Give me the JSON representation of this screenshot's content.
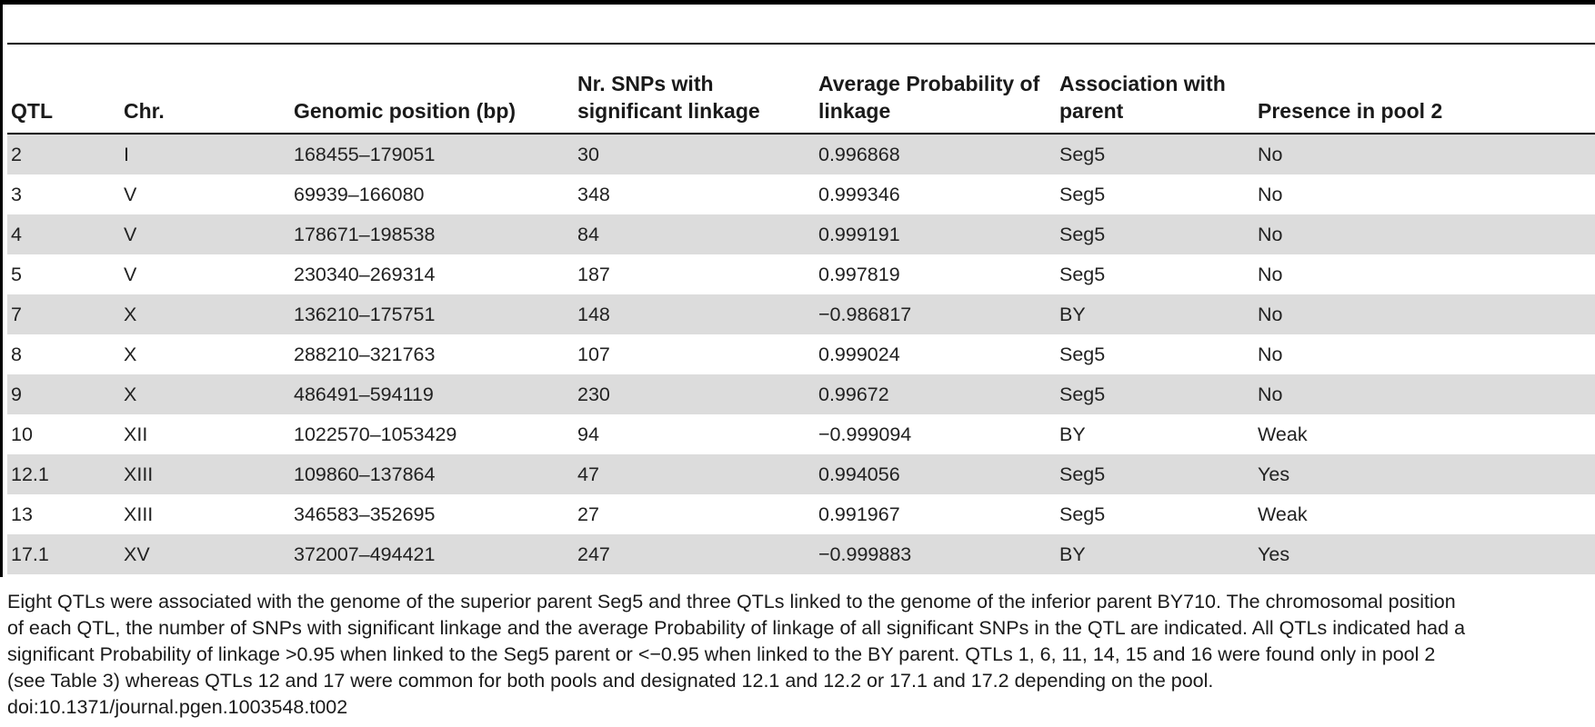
{
  "table": {
    "headers": {
      "qtl": "QTL",
      "chr": "Chr.",
      "position": "Genomic position (bp)",
      "snps": "Nr. SNPs with significant linkage",
      "prob": "Average Probability of linkage",
      "assoc": "Association with parent",
      "pool2": "Presence in pool 2"
    },
    "rows": [
      {
        "qtl": "2",
        "chr": "I",
        "position": "168455–179051",
        "snps": "30",
        "prob": "0.996868",
        "assoc": "Seg5",
        "pool2": "No"
      },
      {
        "qtl": "3",
        "chr": "V",
        "position": "69939–166080",
        "snps": "348",
        "prob": "0.999346",
        "assoc": "Seg5",
        "pool2": "No"
      },
      {
        "qtl": "4",
        "chr": "V",
        "position": "178671–198538",
        "snps": "84",
        "prob": "0.999191",
        "assoc": "Seg5",
        "pool2": "No"
      },
      {
        "qtl": "5",
        "chr": "V",
        "position": "230340–269314",
        "snps": "187",
        "prob": "0.997819",
        "assoc": "Seg5",
        "pool2": "No"
      },
      {
        "qtl": "7",
        "chr": "X",
        "position": "136210–175751",
        "snps": "148",
        "prob": "−0.986817",
        "assoc": "BY",
        "pool2": "No"
      },
      {
        "qtl": "8",
        "chr": "X",
        "position": "288210–321763",
        "snps": "107",
        "prob": "0.999024",
        "assoc": "Seg5",
        "pool2": "No"
      },
      {
        "qtl": "9",
        "chr": "X",
        "position": "486491–594119",
        "snps": "230",
        "prob": "0.99672",
        "assoc": "Seg5",
        "pool2": "No"
      },
      {
        "qtl": "10",
        "chr": "XII",
        "position": "1022570–1053429",
        "snps": "94",
        "prob": "−0.999094",
        "assoc": "BY",
        "pool2": "Weak"
      },
      {
        "qtl": "12.1",
        "chr": "XIII",
        "position": "109860–137864",
        "snps": "47",
        "prob": "0.994056",
        "assoc": "Seg5",
        "pool2": "Yes"
      },
      {
        "qtl": "13",
        "chr": "XIII",
        "position": "346583–352695",
        "snps": "27",
        "prob": "0.991967",
        "assoc": "Seg5",
        "pool2": "Weak"
      },
      {
        "qtl": "17.1",
        "chr": "XV",
        "position": "372007–494421",
        "snps": "247",
        "prob": "−0.999883",
        "assoc": "BY",
        "pool2": "Yes"
      }
    ]
  },
  "footnote": {
    "lines": [
      "Eight QTLs were associated with the genome of the superior parent Seg5 and three QTLs linked to the genome of the inferior parent BY710. The chromosomal position",
      "of each QTL, the number of SNPs with significant linkage and the average Probability of linkage of all significant SNPs in the QTL are indicated. All QTLs indicated had a",
      "significant Probability of linkage >0.95 when linked to the Seg5 parent or <−0.95 when linked to the BY parent. QTLs 1, 6, 11, 14, 15 and 16 were found only in pool 2",
      "(see Table 3) whereas QTLs 12 and 17 were common for both pools and designated 12.1 and 12.2 or 17.1 and 17.2 depending on the pool."
    ],
    "doi": "doi:10.1371/journal.pgen.1003548.t002"
  }
}
